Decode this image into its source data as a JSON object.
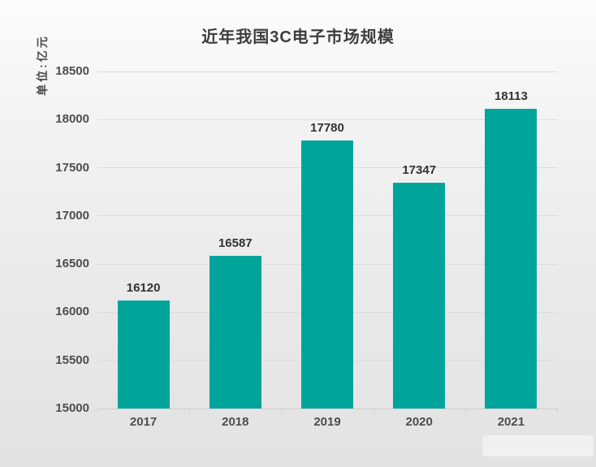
{
  "title": "近年我国3C电子市场规模",
  "unit_label": "单位:亿元",
  "colors": {
    "bar": "#00a49b",
    "gridline": "#dcdcdc",
    "axis_line": "#cfcfcf",
    "title_text": "#3d3d3d",
    "axis_label_text": "#4d4d4d",
    "value_label_text": "#323232",
    "background_top": "#fcfcfc",
    "background_bottom": "#e2e2e2"
  },
  "chart_data": {
    "type": "bar",
    "title": "近年我国3C电子市场规模",
    "categories": [
      "2017",
      "2018",
      "2019",
      "2020",
      "2021"
    ],
    "values": [
      16120,
      16587,
      17780,
      17347,
      18113
    ],
    "value_labels_shown": true,
    "xlabel": "",
    "ylabel": "单位:亿元",
    "ylim": [
      15000,
      18500
    ],
    "ytick_step": 500,
    "yticks": [
      15000,
      15500,
      16000,
      16500,
      17000,
      17500,
      18000,
      18500
    ],
    "grid": true,
    "legend": "none"
  }
}
